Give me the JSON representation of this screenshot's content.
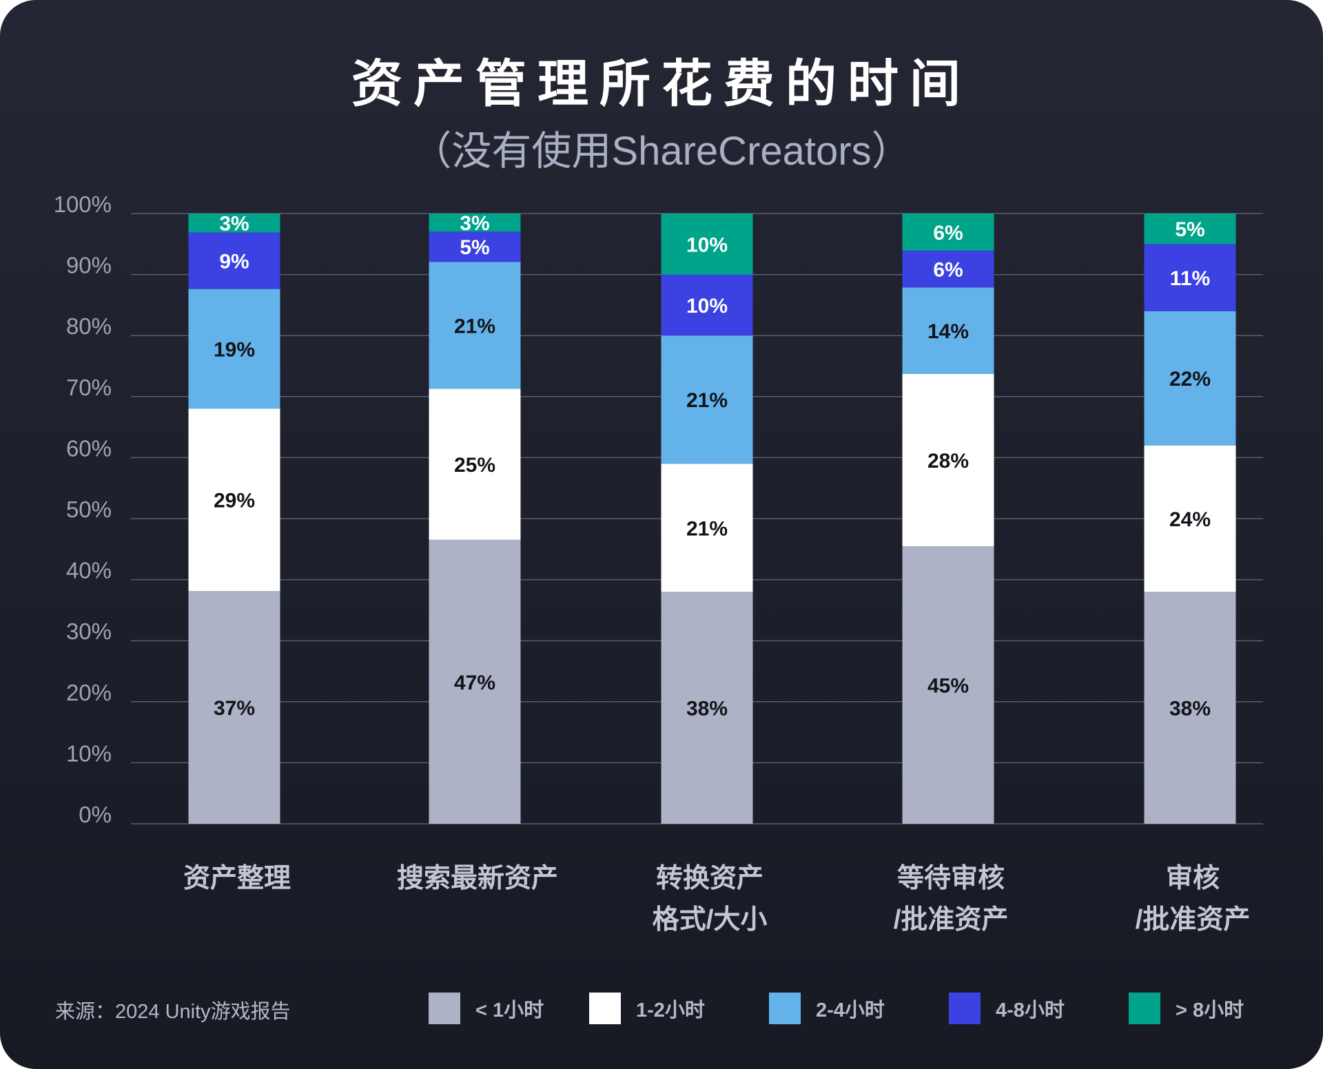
{
  "title": "资产管理所花费的时间",
  "subtitle": "（没有使用ShareCreators）",
  "source": "来源：2024 Unity游戏报告",
  "chart_data": {
    "type": "bar",
    "stacked": true,
    "title": "资产管理所花费的时间",
    "subtitle": "（没有使用ShareCreators）",
    "categories": [
      [
        "资产整理"
      ],
      [
        "搜索最新资产"
      ],
      [
        "转换资产",
        "格式/大小"
      ],
      [
        "等待审核",
        "/批准资产"
      ],
      [
        "审核",
        "/批准资产"
      ]
    ],
    "series": [
      {
        "name": "< 1小时",
        "color": "#adb2c6",
        "label_color": "#111418",
        "values": [
          37,
          47,
          38,
          45,
          38
        ]
      },
      {
        "name": "1-2小时",
        "color": "#ffffff",
        "label_color": "#111418",
        "values": [
          29,
          25,
          21,
          28,
          24
        ]
      },
      {
        "name": "2-4小时",
        "color": "#64b2ea",
        "label_color": "#111418",
        "values": [
          19,
          21,
          21,
          14,
          22
        ]
      },
      {
        "name": "4-8小时",
        "color": "#3c42e2",
        "label_color": "#ffffff",
        "values": [
          9,
          5,
          10,
          6,
          11
        ]
      },
      {
        "name": "> 8小时",
        "color": "#00a48a",
        "label_color": "#ffffff",
        "values": [
          3,
          3,
          10,
          6,
          5
        ]
      }
    ],
    "yticks": [
      "0%",
      "10%",
      "20%",
      "30%",
      "40%",
      "50%",
      "60%",
      "70%",
      "80%",
      "90%",
      "100%"
    ],
    "ylim": [
      0,
      100
    ],
    "grid": true,
    "legend": "bottom"
  }
}
